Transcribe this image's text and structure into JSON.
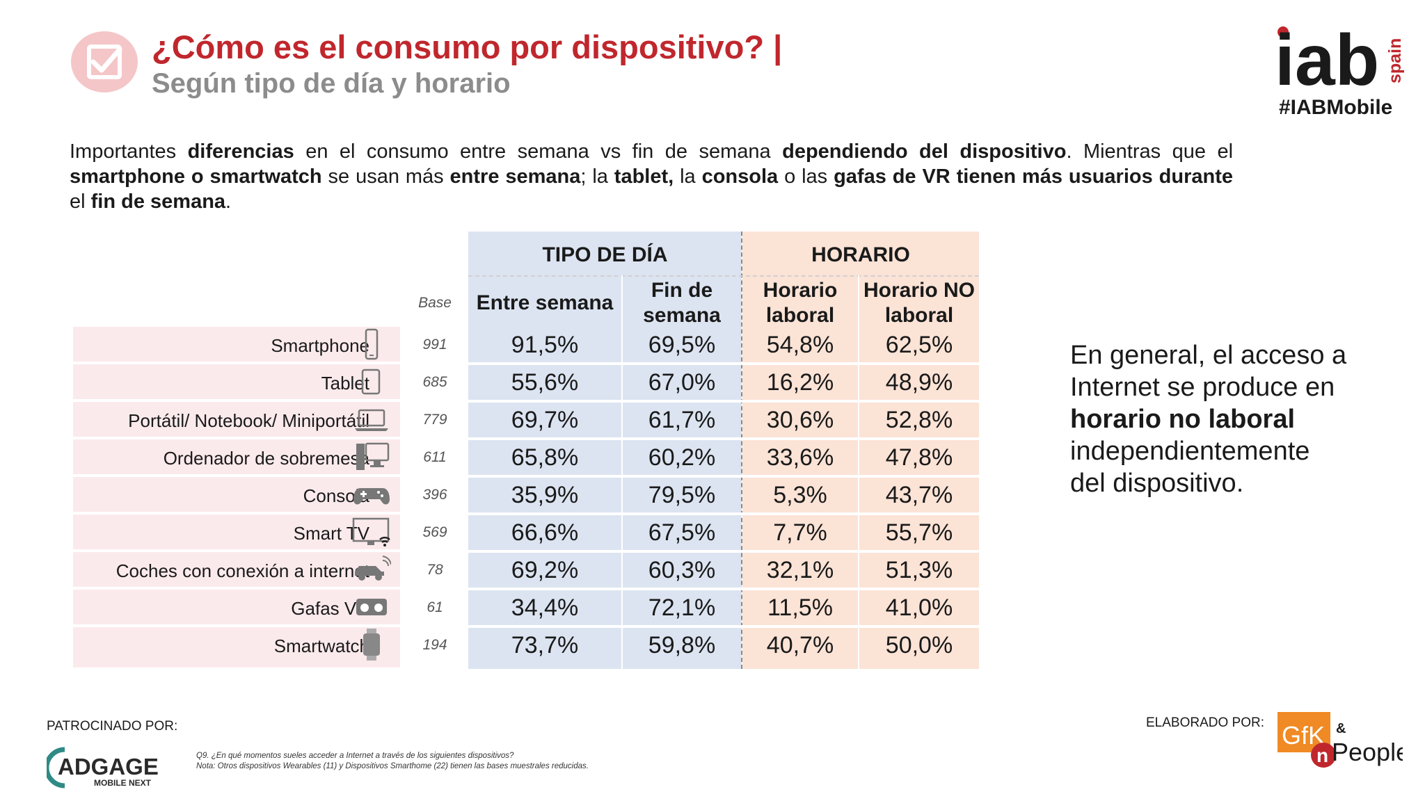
{
  "header": {
    "title": "¿Cómo es el consumo por dispositivo? |",
    "subtitle": "Según tipo de día y horario",
    "logo_text": "iab",
    "logo_sub": "spain",
    "hashtag": "#IABMobile"
  },
  "intro": {
    "segments": [
      {
        "t": "Importantes ",
        "b": false
      },
      {
        "t": "diferencias",
        "b": true
      },
      {
        "t": " en el consumo entre semana vs fin de semana ",
        "b": false
      },
      {
        "t": "dependiendo del dispositivo",
        "b": true
      },
      {
        "t": ". Mientras que el ",
        "b": false
      },
      {
        "t": "smartphone o smartwatch",
        "b": true
      },
      {
        "t": " se usan más ",
        "b": false
      },
      {
        "t": "entre semana",
        "b": true
      },
      {
        "t": "; la ",
        "b": false
      },
      {
        "t": "tablet,",
        "b": true
      },
      {
        "t": " la ",
        "b": false
      },
      {
        "t": "consola",
        "b": true
      },
      {
        "t": " o las ",
        "b": false
      },
      {
        "t": "gafas de VR tienen más usuarios durante",
        "b": true
      },
      {
        "t": " el ",
        "b": false
      },
      {
        "t": "fin de semana",
        "b": true
      },
      {
        "t": ".",
        "b": false
      }
    ]
  },
  "table": {
    "group_day": "TIPO DE DÍA",
    "group_time": "HORARIO",
    "base_label": "Base",
    "col_entre": "Entre semana",
    "col_fin": [
      "Fin de",
      "semana"
    ],
    "col_laboral": [
      "Horario",
      "laboral"
    ],
    "col_no_laboral": [
      "Horario NO",
      "laboral"
    ],
    "rows": [
      {
        "device": "Smartphone",
        "icon": "smartphone-icon",
        "base": "991",
        "entre": "91,5%",
        "fin": "69,5%",
        "laboral": "54,8%",
        "no_laboral": "62,5%"
      },
      {
        "device": "Tablet",
        "icon": "tablet-icon",
        "base": "685",
        "entre": "55,6%",
        "fin": "67,0%",
        "laboral": "16,2%",
        "no_laboral": "48,9%"
      },
      {
        "device": "Portátil/ Notebook/ Miniportátil",
        "icon": "laptop-icon",
        "base": "779",
        "entre": "69,7%",
        "fin": "61,7%",
        "laboral": "30,6%",
        "no_laboral": "52,8%"
      },
      {
        "device": "Ordenador de sobremesa",
        "icon": "desktop-icon",
        "base": "611",
        "entre": "65,8%",
        "fin": "60,2%",
        "laboral": "33,6%",
        "no_laboral": "47,8%"
      },
      {
        "device": "Consola",
        "icon": "gamepad-icon",
        "base": "396",
        "entre": "35,9%",
        "fin": "79,5%",
        "laboral": "5,3%",
        "no_laboral": "43,7%"
      },
      {
        "device": "Smart TV",
        "icon": "smart-tv-icon",
        "base": "569",
        "entre": "66,6%",
        "fin": "67,5%",
        "laboral": "7,7%",
        "no_laboral": "55,7%"
      },
      {
        "device": "Coches con conexión a internet",
        "icon": "connected-car-icon",
        "base": "78",
        "entre": "69,2%",
        "fin": "60,3%",
        "laboral": "32,1%",
        "no_laboral": "51,3%"
      },
      {
        "device": "Gafas VR",
        "icon": "vr-glasses-icon",
        "base": "61",
        "entre": "34,4%",
        "fin": "72,1%",
        "laboral": "11,5%",
        "no_laboral": "41,0%"
      },
      {
        "device": "Smartwatch",
        "icon": "smartwatch-icon",
        "base": "194",
        "entre": "73,7%",
        "fin": "59,8%",
        "laboral": "40,7%",
        "no_laboral": "50,0%"
      }
    ]
  },
  "note": {
    "segments": [
      {
        "t": "En general, el acceso a Internet se produce en ",
        "b": false
      },
      {
        "t": "horario no laboral",
        "b": true
      },
      {
        "t": " independientemente del dispositivo.",
        "b": false
      }
    ]
  },
  "footer": {
    "sponsor_label": "PATROCINADO POR:",
    "sponsor_logo": "ADGAGE",
    "sponsor_logo_sub": "MOBILE NEXT",
    "footnote_q": "Q9. ¿En qué momentos sueles acceder a Internet a través de los siguientes dispositivos?",
    "footnote_note": "Nota: Otros dispositivos Wearables (11) y Dispositivos Smarthome (22) tienen las bases muestrales reducidas.",
    "made_by_label": "ELABORADO POR:",
    "gfk_text": "GfK",
    "amp_text": "&",
    "people_text": "People",
    "people_prefix": "n"
  },
  "colors": {
    "title_red": "#c0272d",
    "subtitle_gray": "#8c8c8c",
    "day_blue": "#dce4f1",
    "time_orange": "#fbe3d6",
    "device_pink": "#fbeaec",
    "gfk_orange": "#f08a24"
  }
}
